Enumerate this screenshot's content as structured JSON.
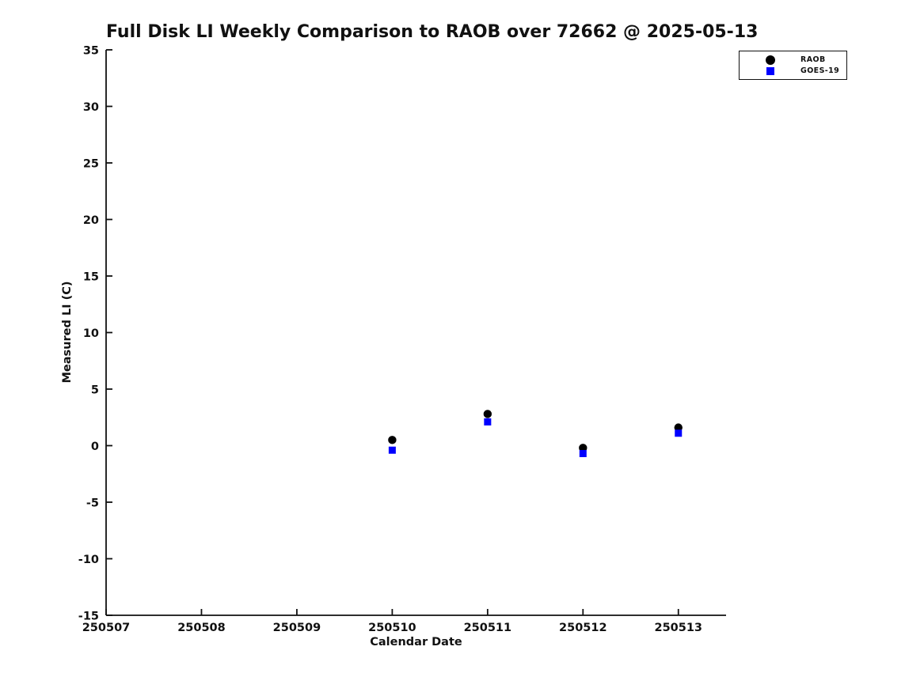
{
  "figure": {
    "title": "Full Disk LI Weekly Comparison to RAOB over 72662 @ 2025-05-13"
  },
  "chart_data": {
    "type": "scatter",
    "title": "Full Disk LI Weekly Comparison to RAOB over 72662 @ 2025-05-13",
    "xlabel": "Calendar Date",
    "ylabel": "Measured LI (C)",
    "xlim": [
      250507,
      250513.5
    ],
    "ylim": [
      -15,
      35
    ],
    "xticks": [
      250507,
      250508,
      250509,
      250510,
      250511,
      250512,
      250513
    ],
    "yticks": [
      -15,
      -10,
      -5,
      0,
      5,
      10,
      15,
      20,
      25,
      30,
      35
    ],
    "grid": false,
    "legend": {
      "position": "upper-right",
      "entries": [
        "RAOB",
        "GOES-19"
      ]
    },
    "series": [
      {
        "name": "RAOB",
        "marker": "circle",
        "color": "#000000",
        "x": [
          250510,
          250511,
          250512,
          250513
        ],
        "y": [
          0.5,
          2.8,
          -0.2,
          1.6
        ]
      },
      {
        "name": "GOES-19",
        "marker": "square",
        "color": "#0000ff",
        "x": [
          250510,
          250511,
          250512,
          250513
        ],
        "y": [
          -0.4,
          2.1,
          -0.7,
          1.1
        ]
      }
    ]
  }
}
